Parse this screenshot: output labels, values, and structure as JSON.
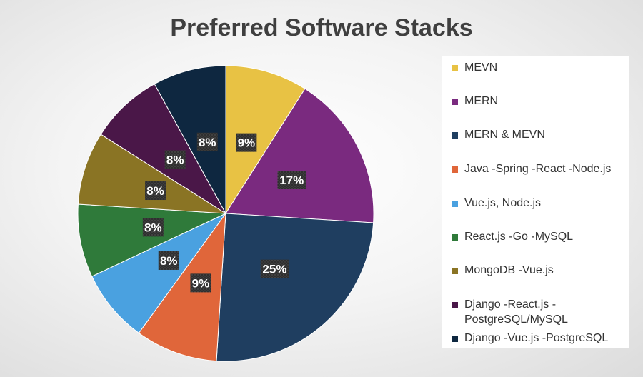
{
  "chart_data": {
    "type": "pie",
    "title": "Preferred Software Stacks",
    "legend_position": "right",
    "slices": [
      {
        "name": "MEVN",
        "value": 9,
        "label": "9%",
        "color": "#e8c244"
      },
      {
        "name": "MERN",
        "value": 17,
        "label": "17%",
        "color": "#7a2a7f"
      },
      {
        "name": "MERN & MEVN",
        "value": 25,
        "label": "25%",
        "color": "#1f3e60"
      },
      {
        "name": "Java -Spring -React -Node.js",
        "value": 9,
        "label": "9%",
        "color": "#e0663a"
      },
      {
        "name": "Vue.js, Node.js",
        "value": 8,
        "label": "8%",
        "color": "#4aa1e0"
      },
      {
        "name": "React.js -Go -MySQL",
        "value": 8,
        "label": "8%",
        "color": "#2f7a3a"
      },
      {
        "name": "MongoDB -Vue.js",
        "value": 8,
        "label": "8%",
        "color": "#8a7424"
      },
      {
        "name": "Django -React.js - PostgreSQL/MySQL",
        "value": 8,
        "label": "8%",
        "color": "#4a1748"
      },
      {
        "name": "Django -Vue.js -PostgreSQL",
        "value": 8,
        "label": "8%",
        "color": "#0e2740"
      }
    ]
  }
}
